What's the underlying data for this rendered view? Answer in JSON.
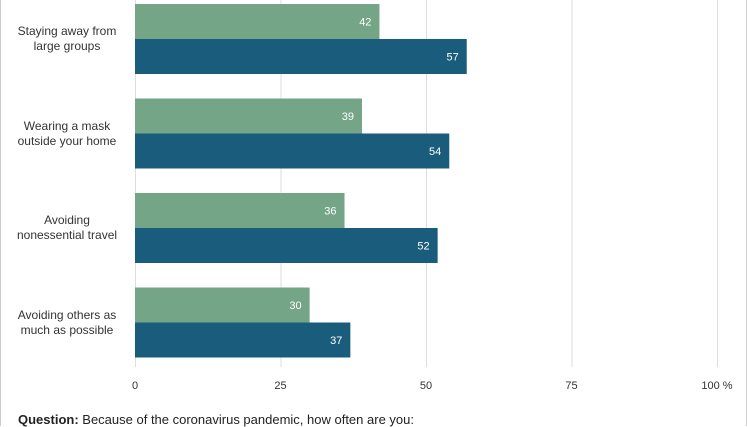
{
  "chart_data": {
    "type": "bar",
    "orientation": "horizontal",
    "categories": [
      "Staying away from large groups",
      "Wearing a mask outside your home",
      "Avoiding nonessential travel",
      "Avoiding others as much as possible"
    ],
    "category_lines": [
      [
        "Staying away from",
        "large groups"
      ],
      [
        "Wearing a mask",
        "outside your home"
      ],
      [
        "Avoiding",
        "nonessential travel"
      ],
      [
        "Avoiding others as",
        "much as possible"
      ]
    ],
    "series": [
      {
        "values": [
          42,
          39,
          36,
          30
        ],
        "color": "#74a587"
      },
      {
        "values": [
          57,
          54,
          52,
          37
        ],
        "color": "#1a5c7c"
      }
    ],
    "xlim": [
      0,
      100
    ],
    "x_ticks": [
      "0",
      "25",
      "50",
      "75",
      "100 %"
    ],
    "x_tick_values": [
      0,
      25,
      50,
      75,
      100
    ],
    "grid": true,
    "grid_color": "#dddddd"
  },
  "footnote": {
    "label": "Question:",
    "text": " Because of the coronavirus pandemic, how often are you:"
  }
}
